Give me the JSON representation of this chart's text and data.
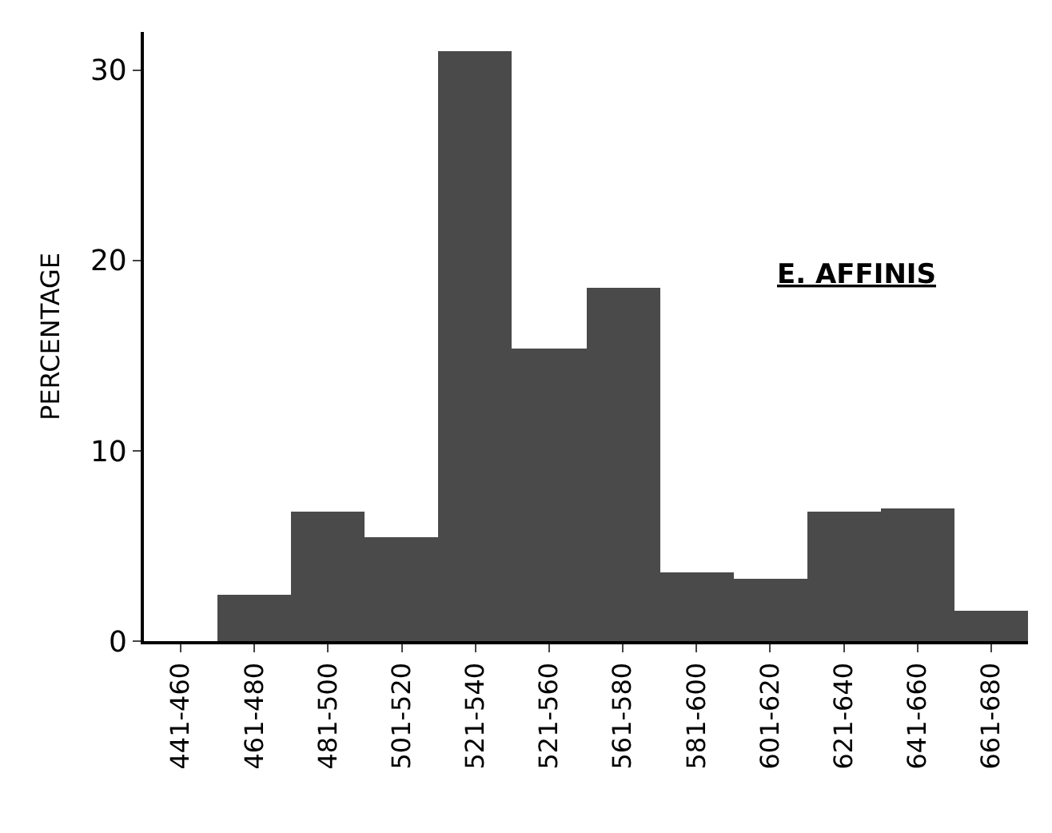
{
  "chart_data": {
    "type": "bar",
    "ylabel": "PERCENTAGE",
    "categories": [
      "441-460",
      "461-480",
      "481-500",
      "501-520",
      "521-540",
      "521-560",
      "561-580",
      "581-600",
      "601-620",
      "621-640",
      "641-660",
      "661-680"
    ],
    "values": [
      0,
      2.4,
      6.8,
      5.5,
      31,
      15.4,
      18.6,
      3.6,
      3.3,
      6.8,
      7,
      1.6
    ],
    "color": "#4a4a4a",
    "ylim": [
      0,
      32
    ],
    "yticks": [
      0,
      10,
      20,
      30
    ],
    "annotations": [
      "E. AFFINIS"
    ]
  }
}
